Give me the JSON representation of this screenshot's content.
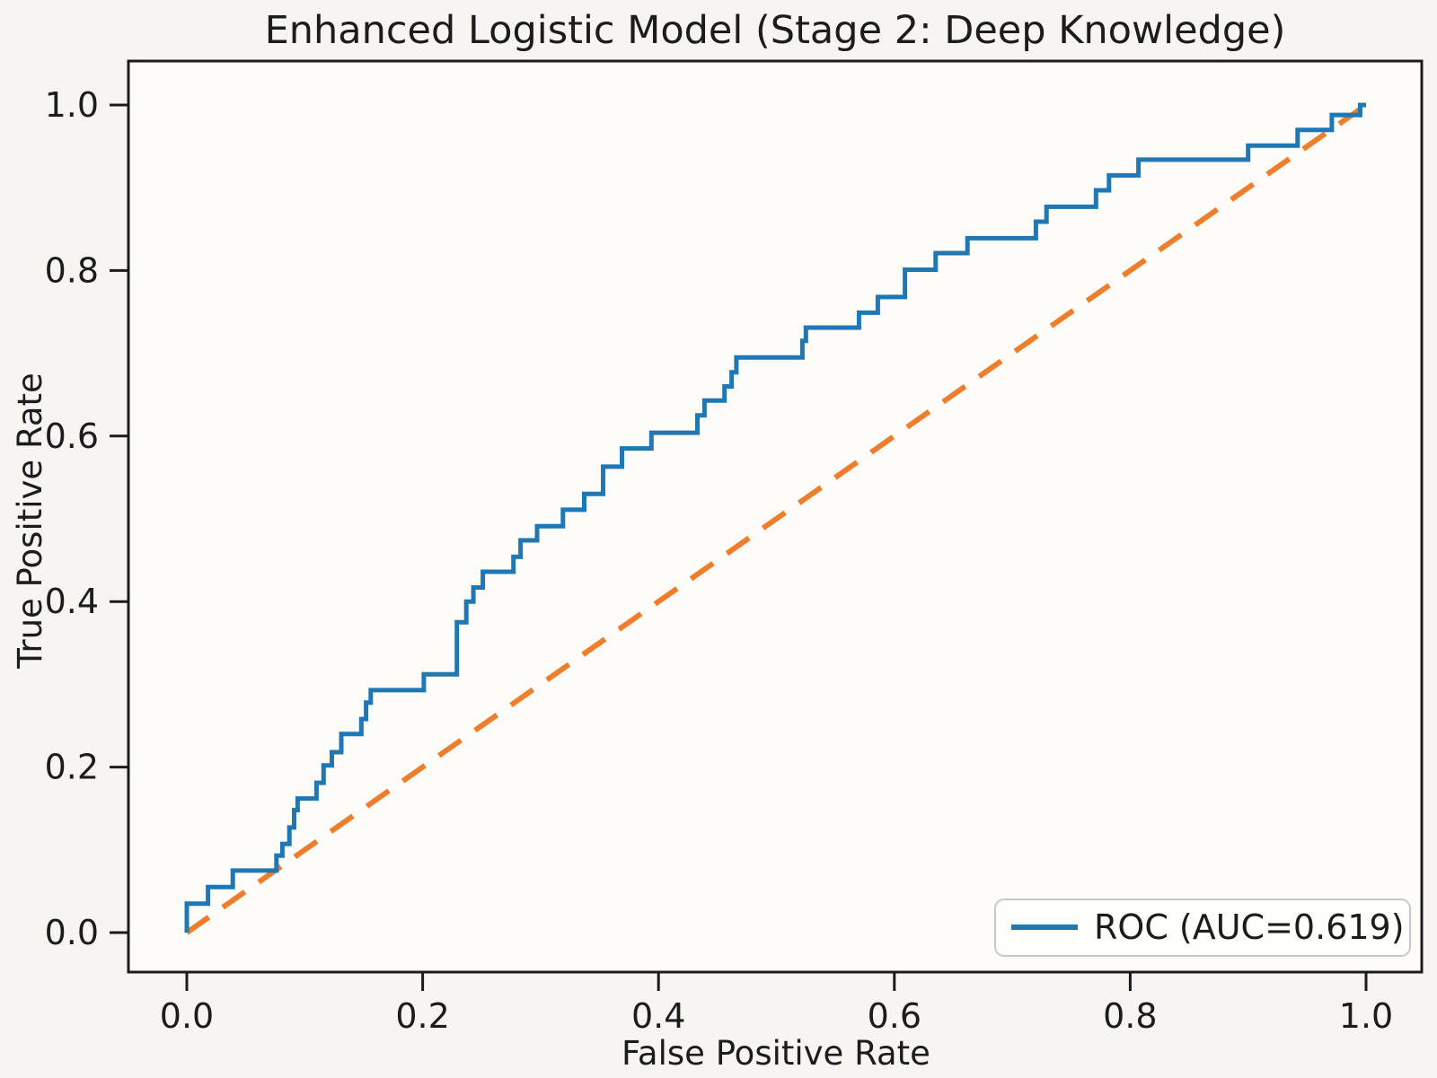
{
  "figure": {
    "background_color": "#f7f5f1",
    "plot_background_color": "#fdfcf9",
    "spine_color": "#1b1b1b",
    "text_color": "#1c1c1c"
  },
  "legend": {
    "label": "ROC (AUC=0.619)",
    "position": "lower right",
    "border_color": "#c9c9c4",
    "fill_color": "#fefefc"
  },
  "chart_data": {
    "type": "line",
    "title": "Enhanced Logistic Model (Stage 2: Deep Knowledge)",
    "xlabel": "False Positive Rate",
    "ylabel": "True Positive Rate",
    "xlim": [
      0,
      1
    ],
    "ylim": [
      0,
      1
    ],
    "xtick_labels": [
      "0.0",
      "0.2",
      "0.4",
      "0.6",
      "0.8",
      "1.0"
    ],
    "ytick_labels": [
      "0.0",
      "0.2",
      "0.4",
      "0.6",
      "0.8",
      "1.0"
    ],
    "xticks": [
      0.0,
      0.2,
      0.4,
      0.6,
      0.8,
      1.0
    ],
    "yticks": [
      0.0,
      0.2,
      0.4,
      0.6,
      0.8,
      1.0
    ],
    "grid": false,
    "legend_position": "lower right",
    "auc": 0.619,
    "series": [
      {
        "name": "ROC (AUC=0.619)",
        "color": "#1f77b4",
        "style": "solid",
        "line_width": 5,
        "points": [
          [
            0.0,
            0.0
          ],
          [
            0.0,
            0.035
          ],
          [
            0.018,
            0.035
          ],
          [
            0.018,
            0.055
          ],
          [
            0.039,
            0.055
          ],
          [
            0.039,
            0.075
          ],
          [
            0.076,
            0.075
          ],
          [
            0.076,
            0.093
          ],
          [
            0.081,
            0.093
          ],
          [
            0.081,
            0.107
          ],
          [
            0.087,
            0.107
          ],
          [
            0.087,
            0.127
          ],
          [
            0.091,
            0.127
          ],
          [
            0.091,
            0.148
          ],
          [
            0.094,
            0.148
          ],
          [
            0.094,
            0.162
          ],
          [
            0.11,
            0.162
          ],
          [
            0.11,
            0.181
          ],
          [
            0.116,
            0.181
          ],
          [
            0.116,
            0.202
          ],
          [
            0.123,
            0.202
          ],
          [
            0.123,
            0.218
          ],
          [
            0.131,
            0.218
          ],
          [
            0.131,
            0.24
          ],
          [
            0.148,
            0.24
          ],
          [
            0.148,
            0.258
          ],
          [
            0.152,
            0.258
          ],
          [
            0.152,
            0.278
          ],
          [
            0.156,
            0.278
          ],
          [
            0.156,
            0.293
          ],
          [
            0.201,
            0.293
          ],
          [
            0.201,
            0.312
          ],
          [
            0.229,
            0.312
          ],
          [
            0.229,
            0.375
          ],
          [
            0.237,
            0.375
          ],
          [
            0.237,
            0.4
          ],
          [
            0.243,
            0.4
          ],
          [
            0.243,
            0.417
          ],
          [
            0.251,
            0.417
          ],
          [
            0.251,
            0.436
          ],
          [
            0.277,
            0.436
          ],
          [
            0.277,
            0.454
          ],
          [
            0.283,
            0.454
          ],
          [
            0.283,
            0.474
          ],
          [
            0.297,
            0.474
          ],
          [
            0.297,
            0.491
          ],
          [
            0.319,
            0.491
          ],
          [
            0.319,
            0.511
          ],
          [
            0.337,
            0.511
          ],
          [
            0.337,
            0.53
          ],
          [
            0.353,
            0.53
          ],
          [
            0.353,
            0.563
          ],
          [
            0.369,
            0.563
          ],
          [
            0.369,
            0.585
          ],
          [
            0.394,
            0.585
          ],
          [
            0.394,
            0.604
          ],
          [
            0.433,
            0.604
          ],
          [
            0.433,
            0.625
          ],
          [
            0.439,
            0.625
          ],
          [
            0.439,
            0.643
          ],
          [
            0.456,
            0.643
          ],
          [
            0.456,
            0.66
          ],
          [
            0.462,
            0.66
          ],
          [
            0.462,
            0.677
          ],
          [
            0.466,
            0.677
          ],
          [
            0.466,
            0.695
          ],
          [
            0.522,
            0.695
          ],
          [
            0.522,
            0.715
          ],
          [
            0.525,
            0.715
          ],
          [
            0.525,
            0.731
          ],
          [
            0.57,
            0.731
          ],
          [
            0.57,
            0.749
          ],
          [
            0.586,
            0.749
          ],
          [
            0.586,
            0.768
          ],
          [
            0.609,
            0.768
          ],
          [
            0.609,
            0.801
          ],
          [
            0.635,
            0.801
          ],
          [
            0.635,
            0.821
          ],
          [
            0.662,
            0.821
          ],
          [
            0.662,
            0.839
          ],
          [
            0.72,
            0.839
          ],
          [
            0.72,
            0.859
          ],
          [
            0.729,
            0.859
          ],
          [
            0.729,
            0.877
          ],
          [
            0.771,
            0.877
          ],
          [
            0.771,
            0.897
          ],
          [
            0.782,
            0.897
          ],
          [
            0.782,
            0.915
          ],
          [
            0.807,
            0.915
          ],
          [
            0.807,
            0.934
          ],
          [
            0.9,
            0.934
          ],
          [
            0.9,
            0.951
          ],
          [
            0.942,
            0.951
          ],
          [
            0.942,
            0.97
          ],
          [
            0.971,
            0.97
          ],
          [
            0.971,
            0.988
          ],
          [
            0.995,
            0.988
          ],
          [
            0.995,
            1.0
          ],
          [
            1.0,
            1.0
          ]
        ]
      },
      {
        "name": "chance-diagonal",
        "color": "#ee7e2b",
        "style": "dashed",
        "line_width": 6,
        "points": [
          [
            0.0,
            0.0
          ],
          [
            1.0,
            1.0
          ]
        ]
      }
    ]
  }
}
